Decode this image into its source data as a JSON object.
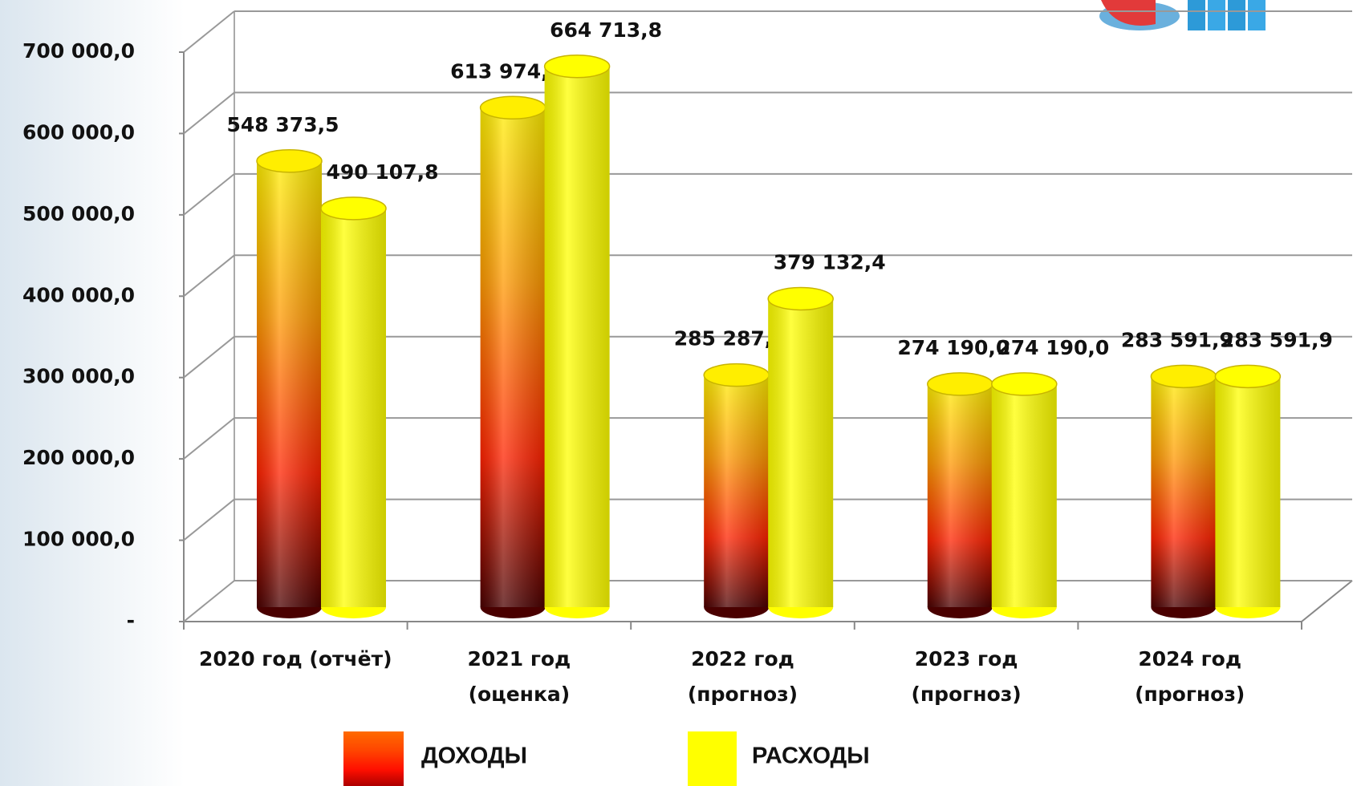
{
  "chart_data": {
    "type": "bar3d",
    "categories": [
      "2020 год (отчёт)",
      "2021 год\n(оценка)",
      "2022 год\n(прогноз)",
      "2023 год\n(прогноз)",
      "2024 год\n(прогноз)"
    ],
    "series": [
      {
        "name": "ДОХОДЫ",
        "color": "#ff0000",
        "values": [
          548373.5,
          613974.9,
          285287.5,
          274190.0,
          283591.9
        ],
        "value_labels": [
          "548 373,5",
          "613 974,9",
          "285 287,5",
          "274 190,0",
          "283 591,9"
        ]
      },
      {
        "name": "РАСХОДЫ",
        "color": "#ffff00",
        "values": [
          490107.8,
          664713.8,
          379132.4,
          274190.0,
          283591.9
        ],
        "value_labels": [
          "490 107,8",
          "664 713,8",
          "379 132,4",
          "274 190,0",
          "283 591,9"
        ]
      }
    ],
    "ylim": [
      0,
      700000
    ],
    "yticks": [
      {
        "value": 0,
        "label": "-"
      },
      {
        "value": 100000,
        "label": "100 000,0"
      },
      {
        "value": 200000,
        "label": "200 000,0"
      },
      {
        "value": 300000,
        "label": "300 000,0"
      },
      {
        "value": 400000,
        "label": "400 000,0"
      },
      {
        "value": 500000,
        "label": "500 000,0"
      },
      {
        "value": 600000,
        "label": "600 000,0"
      },
      {
        "value": 700000,
        "label": "700 000,0"
      }
    ],
    "grid": true,
    "legend": "bottom"
  }
}
